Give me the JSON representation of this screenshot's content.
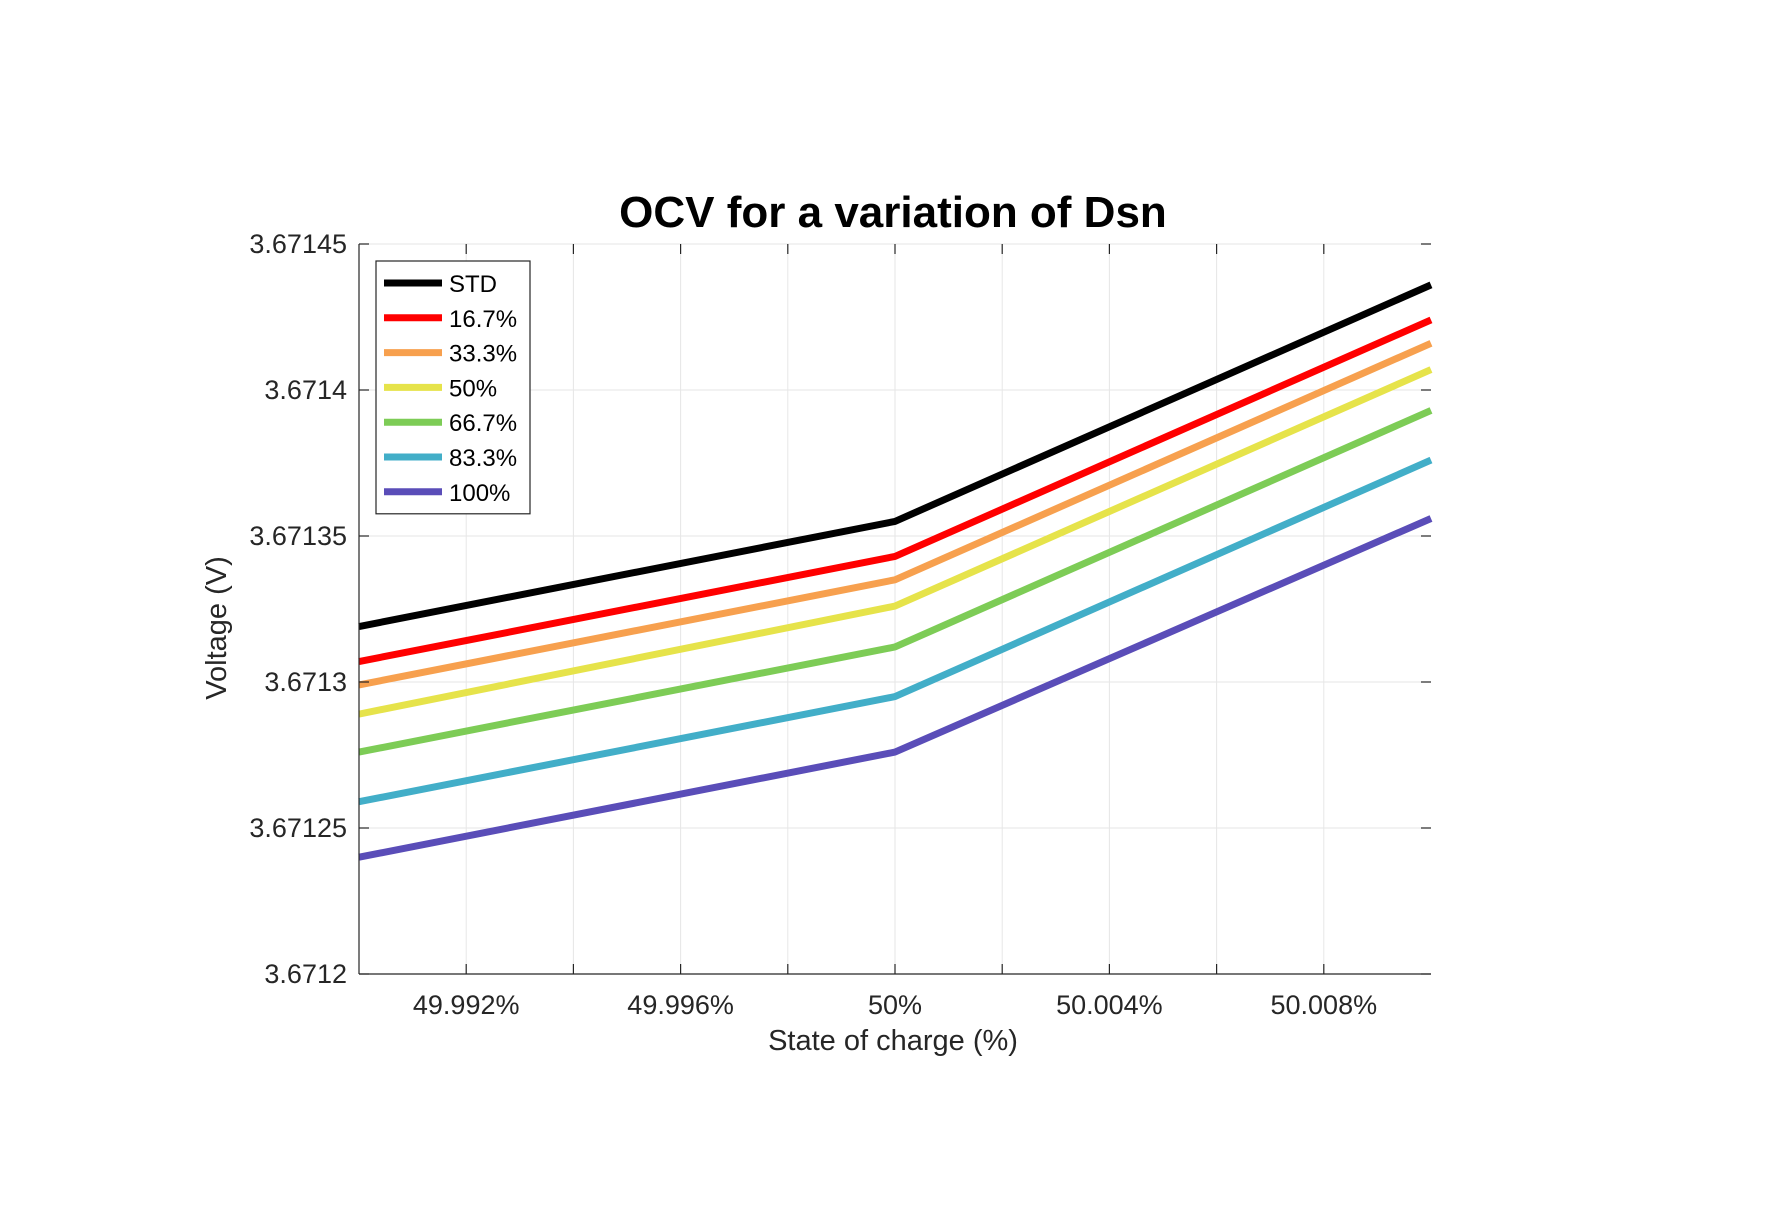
{
  "chart_data": {
    "type": "line",
    "title": "OCV for a variation of Dsn",
    "xlabel": "State of charge (%)",
    "ylabel": "Voltage (V)",
    "xlim": [
      49.99,
      50.01
    ],
    "ylim": [
      3.6712,
      3.67145
    ],
    "grid": true,
    "legend_position": "top-left",
    "x_ticks": [
      49.992,
      49.996,
      50,
      50.004,
      50.008
    ],
    "x_tick_labels": [
      "49.992%",
      "49.996%",
      "50%",
      "50.004%",
      "50.008%"
    ],
    "x_minor_ticks": [
      49.994,
      49.998,
      50.002,
      50.006
    ],
    "y_ticks": [
      3.6712,
      3.67125,
      3.6713,
      3.67135,
      3.6714,
      3.67145
    ],
    "y_tick_labels": [
      "3.6712",
      "3.67125",
      "3.6713",
      "3.67135",
      "3.6714",
      "3.67145"
    ],
    "x": [
      49.99,
      50,
      50.01
    ],
    "series": [
      {
        "name": "STD",
        "color": "#000000",
        "values": [
          3.671319,
          3.671355,
          3.671436
        ]
      },
      {
        "name": "16.7%",
        "color": "#ff0000",
        "values": [
          3.671307,
          3.671343,
          3.671424
        ]
      },
      {
        "name": "33.3%",
        "color": "#f7a04e",
        "values": [
          3.671299,
          3.671335,
          3.671416
        ]
      },
      {
        "name": "50%",
        "color": "#e6e34a",
        "values": [
          3.671289,
          3.671326,
          3.671407
        ]
      },
      {
        "name": "66.7%",
        "color": "#7dcc56",
        "values": [
          3.671276,
          3.671312,
          3.671393
        ]
      },
      {
        "name": "83.3%",
        "color": "#42aec8",
        "values": [
          3.671259,
          3.671295,
          3.671376
        ]
      },
      {
        "name": "100%",
        "color": "#5a4db8",
        "values": [
          3.67124,
          3.671276,
          3.671356
        ]
      }
    ]
  }
}
